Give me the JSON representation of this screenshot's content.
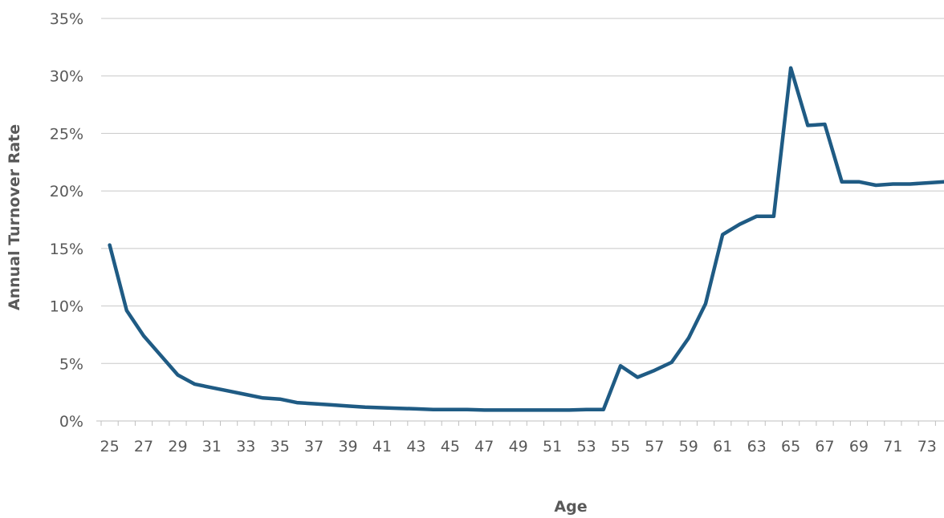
{
  "chart_data": {
    "type": "line",
    "xlabel": "Age",
    "ylabel": "Annual Turnover Rate",
    "x": [
      25,
      26,
      27,
      28,
      29,
      30,
      31,
      32,
      33,
      34,
      35,
      36,
      37,
      38,
      39,
      40,
      41,
      42,
      43,
      44,
      45,
      46,
      47,
      48,
      49,
      50,
      51,
      52,
      53,
      54,
      55,
      56,
      57,
      58,
      59,
      60,
      61,
      62,
      63,
      64,
      65,
      66,
      67,
      68,
      69,
      70,
      71,
      72,
      73,
      74
    ],
    "series": [
      {
        "values": [
          15.3,
          9.6,
          7.4,
          5.7,
          4.0,
          3.2,
          2.9,
          2.6,
          2.3,
          2.0,
          1.9,
          1.6,
          1.5,
          1.4,
          1.3,
          1.2,
          1.15,
          1.1,
          1.05,
          1.0,
          1.0,
          1.0,
          0.95,
          0.95,
          0.95,
          0.95,
          0.95,
          0.95,
          1.0,
          1.0,
          4.8,
          3.8,
          4.4,
          5.1,
          7.2,
          10.2,
          16.2,
          17.1,
          17.8,
          17.8,
          30.7,
          25.7,
          25.8,
          20.8,
          20.8,
          20.5,
          20.6,
          20.6,
          20.7,
          20.8
        ],
        "color": "#1f5b84"
      }
    ],
    "ylim": [
      0,
      35
    ],
    "yticks": [
      0,
      5,
      10,
      15,
      20,
      25,
      30,
      35
    ],
    "y_tick_labels": [
      "0%",
      "5%",
      "10%",
      "15%",
      "20%",
      "25%",
      "30%",
      "35%"
    ],
    "x_tick_labels": [
      "25",
      "27",
      "29",
      "31",
      "33",
      "35",
      "37",
      "39",
      "41",
      "43",
      "45",
      "47",
      "49",
      "51",
      "53",
      "55",
      "57",
      "59",
      "61",
      "63",
      "65",
      "67",
      "69",
      "71",
      "73"
    ],
    "grid": true,
    "legend": "none"
  }
}
